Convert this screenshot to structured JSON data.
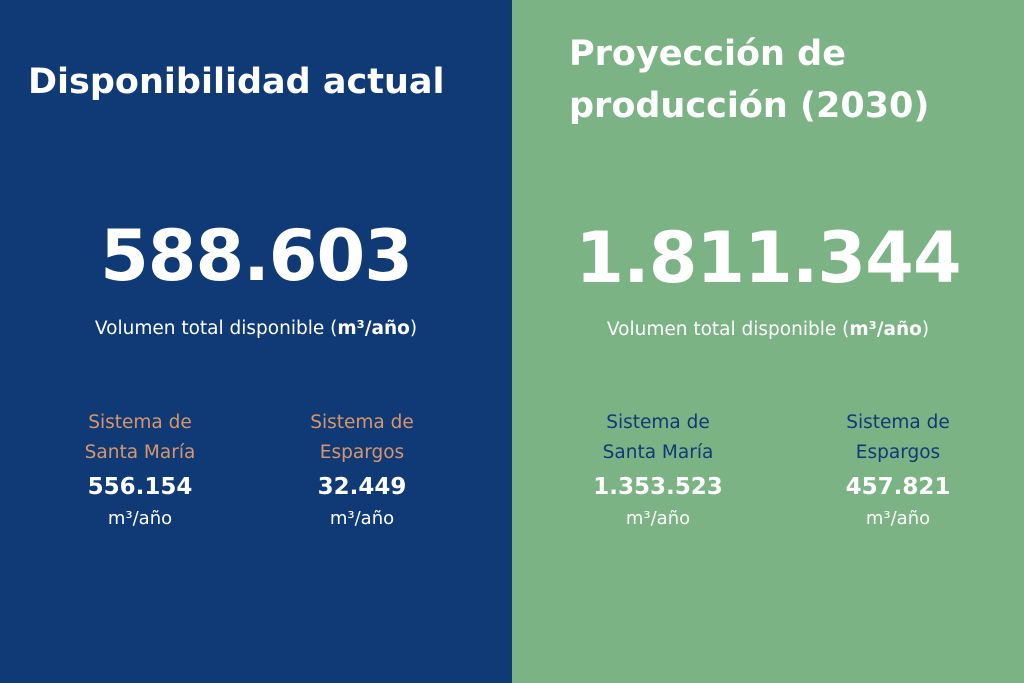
{
  "left": {
    "title": "Disponibilidad actual",
    "total_value": "588.603",
    "total_label_prefix": "Volumen total disponible (",
    "total_unit": "m³/año",
    "total_label_suffix": ")",
    "systems": [
      {
        "name_line1": "Sistema de",
        "name_line2": "Santa María",
        "value": "556.154",
        "unit": "m³/año"
      },
      {
        "name_line1": "Sistema de",
        "name_line2": "Espargos",
        "value": "32.449",
        "unit": "m³/año"
      }
    ]
  },
  "right": {
    "title_line1": "Proyección de",
    "title_line2": "producción (2030)",
    "total_value": "1.811.344",
    "total_label_prefix": "Volumen total disponible (",
    "total_unit": "m³/año",
    "total_label_suffix": ")",
    "systems": [
      {
        "name_line1": "Sistema de",
        "name_line2": "Santa María",
        "value": "1.353.523",
        "unit": "m³/año"
      },
      {
        "name_line1": "Sistema de",
        "name_line2": "Espargos",
        "value": "457.821",
        "unit": "m³/año"
      }
    ]
  },
  "colors": {
    "left_background": "#0f3a76",
    "right_background": "#7bb384",
    "left_system_label": "#d9966a",
    "right_system_label": "#0f3a76",
    "text": "#ffffff"
  }
}
